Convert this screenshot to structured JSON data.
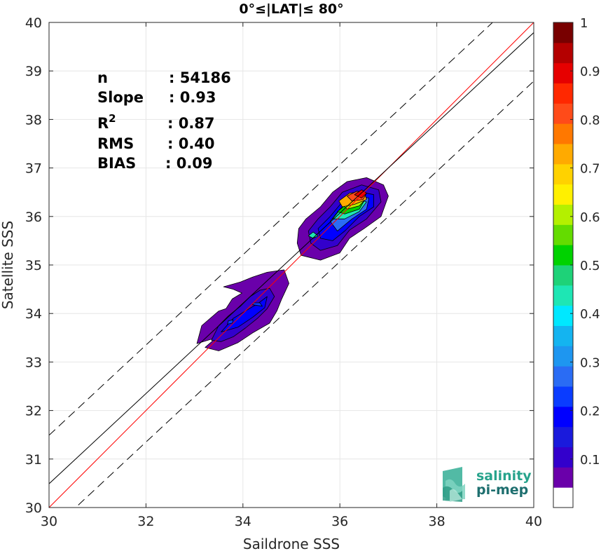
{
  "chart_data": {
    "type": "contour-density",
    "title": "0°≤|LAT|≤ 80°",
    "xlabel": "Saildrone SSS",
    "ylabel": "Satellite SSS",
    "xlim": [
      30,
      40
    ],
    "ylim": [
      30,
      40
    ],
    "xticks": [
      "30",
      "32",
      "34",
      "36",
      "38",
      "40"
    ],
    "yticks": [
      "30",
      "31",
      "32",
      "33",
      "34",
      "35",
      "36",
      "37",
      "38",
      "39",
      "40"
    ],
    "grid": true,
    "stats": [
      {
        "key": "n",
        "value": ": 54186"
      },
      {
        "key": "Slope",
        "value": ": 0.93"
      },
      {
        "key": "R",
        "sup": "2",
        "value": ": 0.87"
      },
      {
        "key": "RMS",
        "value": ": 0.40"
      },
      {
        "key": "BIAS",
        "value": ": 0.09"
      }
    ],
    "lines": [
      {
        "name": "one-to-one",
        "color": "#ff0000",
        "dash": false,
        "points": [
          [
            30,
            30
          ],
          [
            40,
            40
          ]
        ]
      },
      {
        "name": "regression",
        "color": "#000000",
        "dash": false,
        "points": [
          [
            30,
            30.49
          ],
          [
            40,
            39.79
          ]
        ]
      },
      {
        "name": "upper-bound",
        "color": "#000000",
        "dash": true,
        "points": [
          [
            30,
            31.49
          ],
          [
            40,
            40.79
          ]
        ]
      },
      {
        "name": "lower-bound",
        "color": "#000000",
        "dash": true,
        "points": [
          [
            30,
            29.49
          ],
          [
            40,
            38.79
          ]
        ]
      }
    ],
    "contours": [
      {
        "level": 0.05,
        "points": [
          [
            33.45,
            33.5
          ],
          [
            33.05,
            33.38
          ],
          [
            33.15,
            33.75
          ],
          [
            33.5,
            34.05
          ],
          [
            33.65,
            34.1
          ],
          [
            33.78,
            34.3
          ],
          [
            33.98,
            34.42
          ],
          [
            33.8,
            34.5
          ],
          [
            33.6,
            34.55
          ],
          [
            33.95,
            34.65
          ],
          [
            34.2,
            34.75
          ],
          [
            34.5,
            34.85
          ],
          [
            34.85,
            34.9
          ],
          [
            34.95,
            34.62
          ],
          [
            34.8,
            34.3
          ],
          [
            34.7,
            34.05
          ],
          [
            34.55,
            33.8
          ],
          [
            34.2,
            33.6
          ],
          [
            33.9,
            33.4
          ],
          [
            33.5,
            33.23
          ],
          [
            33.22,
            33.3
          ]
        ]
      },
      {
        "level": 0.1,
        "points": [
          [
            33.35,
            33.45
          ],
          [
            33.5,
            33.75
          ],
          [
            33.7,
            33.95
          ],
          [
            33.95,
            34.15
          ],
          [
            34.15,
            34.35
          ],
          [
            34.35,
            34.48
          ],
          [
            34.55,
            34.52
          ],
          [
            34.65,
            34.35
          ],
          [
            34.5,
            34.1
          ],
          [
            34.3,
            33.9
          ],
          [
            34.05,
            33.7
          ],
          [
            33.8,
            33.52
          ],
          [
            33.55,
            33.42
          ]
        ]
      },
      {
        "level": 0.2,
        "points": [
          [
            33.55,
            33.62
          ],
          [
            33.8,
            33.9
          ],
          [
            34.05,
            34.05
          ],
          [
            34.3,
            34.2
          ],
          [
            34.5,
            34.35
          ],
          [
            34.45,
            34.12
          ],
          [
            34.2,
            33.92
          ],
          [
            33.9,
            33.72
          ]
        ]
      },
      {
        "level": 0.25,
        "points": [
          [
            33.68,
            33.78
          ],
          [
            33.78,
            33.8
          ],
          [
            33.8,
            33.87
          ],
          [
            33.7,
            33.85
          ]
        ]
      },
      {
        "level": 0.25,
        "points": [
          [
            34.2,
            34.18
          ],
          [
            34.4,
            34.15
          ],
          [
            34.35,
            34.22
          ],
          [
            34.22,
            34.22
          ]
        ]
      },
      {
        "level": 0.05,
        "points": [
          [
            35.15,
            35.75
          ],
          [
            35.3,
            35.95
          ],
          [
            35.6,
            36.2
          ],
          [
            35.85,
            36.5
          ],
          [
            36.15,
            36.72
          ],
          [
            36.55,
            36.8
          ],
          [
            36.9,
            36.65
          ],
          [
            37.0,
            36.42
          ],
          [
            36.85,
            36.0
          ],
          [
            36.5,
            35.75
          ],
          [
            36.2,
            35.55
          ],
          [
            36.0,
            35.25
          ],
          [
            35.6,
            35.1
          ],
          [
            35.2,
            35.2
          ],
          [
            35.12,
            35.45
          ]
        ]
      },
      {
        "level": 0.1,
        "points": [
          [
            35.35,
            35.7
          ],
          [
            35.55,
            35.95
          ],
          [
            35.8,
            36.2
          ],
          [
            36.05,
            36.5
          ],
          [
            36.45,
            36.65
          ],
          [
            36.8,
            36.55
          ],
          [
            36.85,
            36.3
          ],
          [
            36.55,
            35.95
          ],
          [
            36.2,
            35.72
          ],
          [
            35.95,
            35.4
          ],
          [
            35.6,
            35.3
          ],
          [
            35.4,
            35.45
          ]
        ]
      },
      {
        "level": 0.2,
        "points": [
          [
            35.55,
            35.75
          ],
          [
            35.8,
            36.0
          ],
          [
            36.05,
            36.3
          ],
          [
            36.35,
            36.52
          ],
          [
            36.7,
            36.45
          ],
          [
            36.7,
            36.2
          ],
          [
            36.4,
            36.0
          ],
          [
            36.1,
            35.7
          ],
          [
            35.85,
            35.5
          ],
          [
            35.6,
            35.55
          ]
        ]
      },
      {
        "level": 0.3,
        "points": [
          [
            35.8,
            35.9
          ],
          [
            36.0,
            36.15
          ],
          [
            36.3,
            36.42
          ],
          [
            36.6,
            36.38
          ],
          [
            36.55,
            36.15
          ],
          [
            36.25,
            35.95
          ],
          [
            35.95,
            35.7
          ]
        ]
      },
      {
        "level": 0.45,
        "points": [
          [
            35.85,
            35.95
          ],
          [
            36.05,
            36.2
          ],
          [
            36.3,
            36.38
          ],
          [
            36.55,
            36.3
          ],
          [
            36.4,
            36.1
          ],
          [
            36.1,
            35.95
          ]
        ]
      },
      {
        "level": 0.55,
        "points": [
          [
            35.95,
            36.1
          ],
          [
            36.2,
            36.3
          ],
          [
            36.5,
            36.32
          ],
          [
            36.4,
            36.15
          ],
          [
            36.1,
            36.05
          ]
        ]
      },
      {
        "level": 0.65,
        "points": [
          [
            36.05,
            36.25
          ],
          [
            36.3,
            36.4
          ],
          [
            36.55,
            36.38
          ],
          [
            36.4,
            36.22
          ],
          [
            36.15,
            36.15
          ]
        ]
      },
      {
        "level": 0.75,
        "points": [
          [
            35.98,
            36.32
          ],
          [
            36.2,
            36.48
          ],
          [
            36.5,
            36.52
          ],
          [
            36.55,
            36.35
          ],
          [
            36.3,
            36.25
          ],
          [
            36.05,
            36.2
          ]
        ]
      },
      {
        "level": 0.85,
        "points": [
          [
            36.15,
            36.42
          ],
          [
            36.35,
            36.52
          ],
          [
            36.55,
            36.48
          ],
          [
            36.48,
            36.35
          ],
          [
            36.25,
            36.32
          ]
        ]
      },
      {
        "level": 0.95,
        "points": [
          [
            36.3,
            36.45
          ],
          [
            36.45,
            36.55
          ],
          [
            36.55,
            36.48
          ],
          [
            36.45,
            36.38
          ]
        ]
      },
      {
        "level": 0.45,
        "points": [
          [
            35.35,
            35.6
          ],
          [
            35.45,
            35.68
          ],
          [
            35.55,
            35.6
          ],
          [
            35.45,
            35.55
          ]
        ]
      }
    ],
    "colorbar": {
      "min": 0,
      "max": 1,
      "ticks": [
        "0.1",
        "0.2",
        "0.3",
        "0.4",
        "0.5",
        "0.6",
        "0.7",
        "0.8",
        "0.9",
        "1"
      ],
      "colors": [
        "#ffffff",
        "#6a00aa",
        "#3300cc",
        "#1a1adc",
        "#0000ff",
        "#0a3cff",
        "#2a6cf4",
        "#1e96f0",
        "#14b4f0",
        "#00e8ff",
        "#1ee6b4",
        "#1ed278",
        "#00d200",
        "#64dc00",
        "#b4f000",
        "#fff000",
        "#ffd200",
        "#ffaa00",
        "#ff7800",
        "#ff4b19",
        "#ff2800",
        "#e60000",
        "#b40000",
        "#780000"
      ]
    },
    "logo": {
      "line1": "salinity",
      "line2": "pi-mep"
    }
  }
}
